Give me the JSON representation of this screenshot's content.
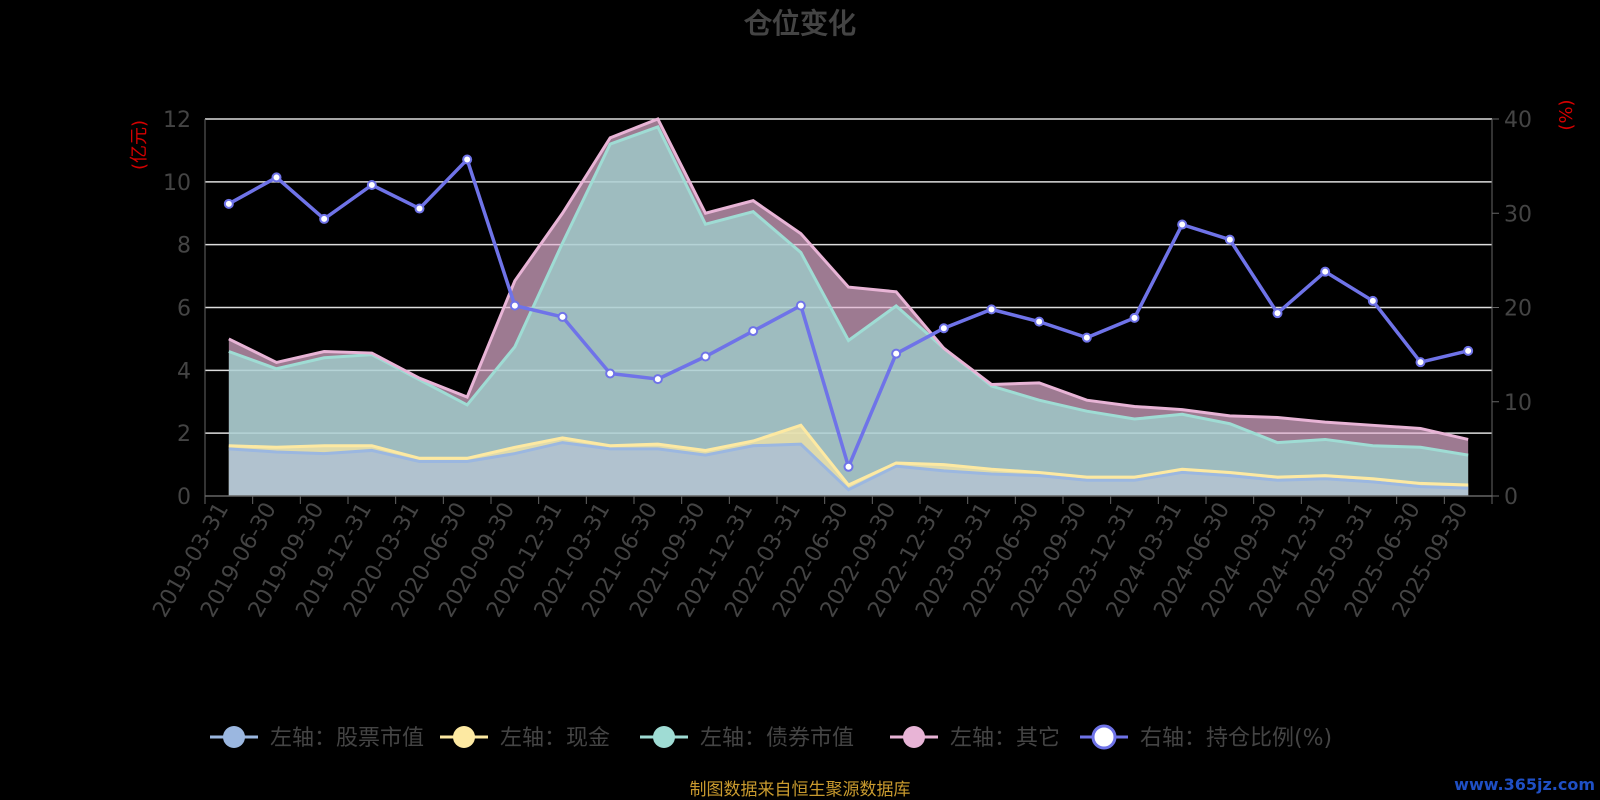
{
  "chart_data": {
    "type": "area",
    "title": "仓位变化",
    "y_left_unit": "(亿元)",
    "y_right_unit": "(%)",
    "y_left_range": [
      0,
      12
    ],
    "y_left_ticks": [
      "0",
      "2",
      "4",
      "6",
      "8",
      "10",
      "12"
    ],
    "y_right_range": [
      0,
      40
    ],
    "y_right_ticks": [
      "0",
      "10",
      "20",
      "30",
      "40"
    ],
    "grid": true,
    "legend_position": "bottom",
    "x": [
      "2019-03-31",
      "2019-06-30",
      "2019-09-30",
      "2019-12-31",
      "2020-03-31",
      "2020-06-30",
      "2020-09-30",
      "2020-12-31",
      "2021-03-31",
      "2021-06-30",
      "2021-09-30",
      "2021-12-31",
      "2022-03-31",
      "2022-06-30",
      "2022-09-30",
      "2022-12-31",
      "2023-03-31",
      "2023-06-30",
      "2023-09-30",
      "2023-12-31",
      "2024-03-31",
      "2024-06-30",
      "2024-09-30",
      "2024-12-31",
      "2025-03-31",
      "2025-06-30",
      "2025-09-30"
    ],
    "series": [
      {
        "name": "左轴：股票市值",
        "axis": "left",
        "stack": true,
        "color": "#9bb7e0",
        "values": [
          1.5,
          1.4,
          1.35,
          1.45,
          1.1,
          1.1,
          1.35,
          1.7,
          1.5,
          1.5,
          1.3,
          1.6,
          1.65,
          0.2,
          0.95,
          0.8,
          0.7,
          0.65,
          0.5,
          0.5,
          0.75,
          0.65,
          0.5,
          0.55,
          0.45,
          0.3,
          0.25
        ]
      },
      {
        "name": "左轴：现金",
        "axis": "left",
        "stack": true,
        "color": "#fde9a2",
        "values": [
          0.1,
          0.15,
          0.25,
          0.15,
          0.1,
          0.1,
          0.2,
          0.15,
          0.1,
          0.15,
          0.15,
          0.15,
          0.6,
          0.15,
          0.1,
          0.2,
          0.15,
          0.1,
          0.1,
          0.1,
          0.1,
          0.1,
          0.1,
          0.1,
          0.1,
          0.1,
          0.1
        ]
      },
      {
        "name": "左轴：债券市值",
        "axis": "left",
        "stack": true,
        "color": "#9fdcd4",
        "values": [
          3.0,
          2.5,
          2.8,
          2.9,
          2.5,
          1.7,
          3.2,
          6.2,
          9.6,
          10.1,
          7.2,
          7.3,
          5.5,
          4.6,
          5.0,
          3.7,
          2.65,
          2.3,
          2.1,
          1.85,
          1.75,
          1.55,
          1.1,
          1.15,
          1.05,
          1.15,
          0.95
        ]
      },
      {
        "name": "左轴：其它",
        "axis": "left",
        "stack": true,
        "color": "#e8b4d6",
        "values": [
          0.4,
          0.2,
          0.2,
          0.05,
          0.05,
          0.25,
          2.1,
          0.95,
          0.2,
          0.25,
          0.35,
          0.35,
          0.6,
          1.7,
          0.45,
          0.0,
          0.05,
          0.55,
          0.35,
          0.4,
          0.15,
          0.25,
          0.8,
          0.55,
          0.65,
          0.6,
          0.5
        ]
      },
      {
        "name": "右轴：持仓比例(%)",
        "axis": "right",
        "color": "#6f73e8",
        "values": [
          31,
          33.8,
          29.4,
          33,
          30.5,
          35.7,
          20.2,
          19,
          13,
          12.4,
          14.8,
          17.5,
          20.2,
          3.1,
          15.1,
          17.8,
          19.8,
          18.5,
          16.8,
          18.9,
          28.8,
          27.2,
          19.4,
          23.8,
          20.7,
          14.2,
          15.4
        ]
      }
    ]
  },
  "source_note": "制图数据来自恒生聚源数据库",
  "watermark": "www.365jz.com"
}
